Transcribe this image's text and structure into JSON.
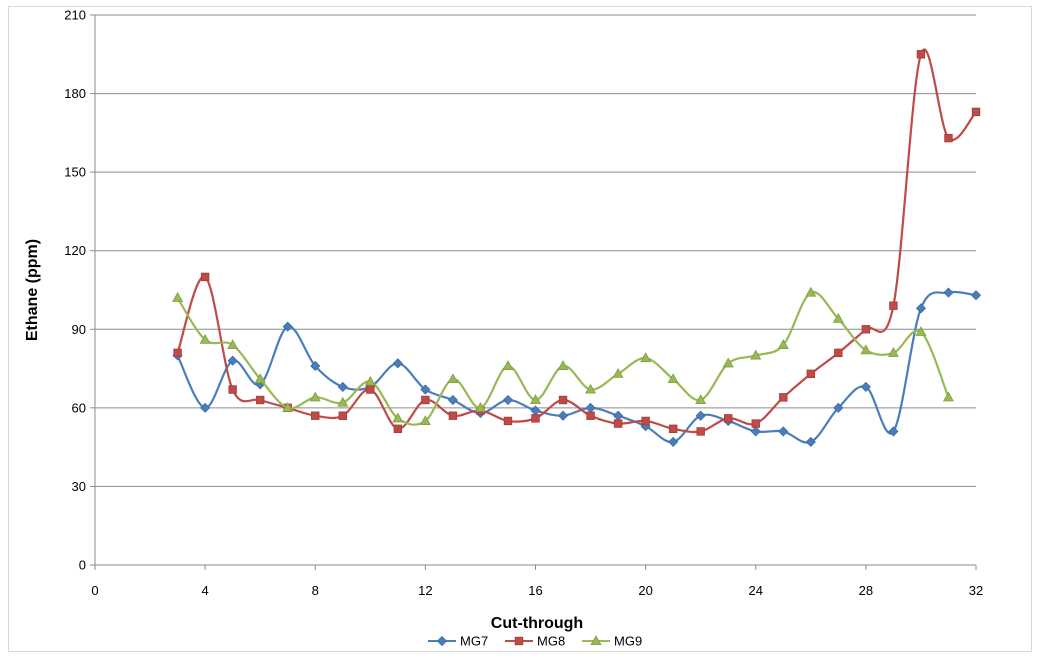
{
  "chart_data": {
    "type": "line",
    "title": "",
    "xlabel": "Cut-through",
    "ylabel": "Ethane (ppm)",
    "xlim": [
      0,
      32
    ],
    "ylim": [
      0,
      210
    ],
    "x_ticks": [
      0,
      4,
      8,
      12,
      16,
      20,
      24,
      28,
      32
    ],
    "y_ticks": [
      0,
      30,
      60,
      90,
      120,
      150,
      180,
      210
    ],
    "grid": "horizontal",
    "legend_position": "bottom",
    "smooth": true,
    "series": [
      {
        "name": "MG7",
        "color": "#4a7ebb",
        "marker": "diamond",
        "x": [
          3,
          4,
          5,
          6,
          7,
          8,
          9,
          10,
          11,
          12,
          13,
          14,
          15,
          16,
          17,
          18,
          19,
          20,
          21,
          22,
          23,
          24,
          25,
          26,
          27,
          28,
          29,
          30,
          31,
          32
        ],
        "values": [
          80,
          60,
          78,
          69,
          91,
          76,
          68,
          68,
          77,
          67,
          63,
          58,
          63,
          59,
          57,
          60,
          57,
          53,
          47,
          57,
          55,
          51,
          51,
          47,
          60,
          68,
          51,
          98,
          104,
          103
        ]
      },
      {
        "name": "MG8",
        "color": "#be4b48",
        "marker": "square",
        "x": [
          3,
          4,
          5,
          6,
          7,
          8,
          9,
          10,
          11,
          12,
          13,
          14,
          15,
          16,
          17,
          18,
          19,
          20,
          21,
          22,
          23,
          24,
          25,
          26,
          27,
          28,
          29,
          30,
          31,
          32
        ],
        "values": [
          81,
          110,
          67,
          63,
          60,
          57,
          57,
          67,
          52,
          63,
          57,
          59,
          55,
          56,
          63,
          57,
          54,
          55,
          52,
          51,
          56,
          54,
          64,
          73,
          81,
          90,
          99,
          195,
          163,
          173
        ]
      },
      {
        "name": "MG9",
        "color": "#98b954",
        "marker": "triangle",
        "x": [
          3,
          4,
          5,
          6,
          7,
          8,
          9,
          10,
          11,
          12,
          13,
          14,
          15,
          16,
          17,
          18,
          19,
          20,
          21,
          22,
          23,
          24,
          25,
          26,
          27,
          28,
          29,
          30,
          31
        ],
        "values": [
          102,
          86,
          84,
          71,
          60,
          64,
          62,
          70,
          56,
          55,
          71,
          60,
          76,
          63,
          76,
          67,
          73,
          79,
          71,
          63,
          77,
          80,
          84,
          104,
          94,
          82,
          81,
          89,
          64
        ]
      }
    ]
  }
}
